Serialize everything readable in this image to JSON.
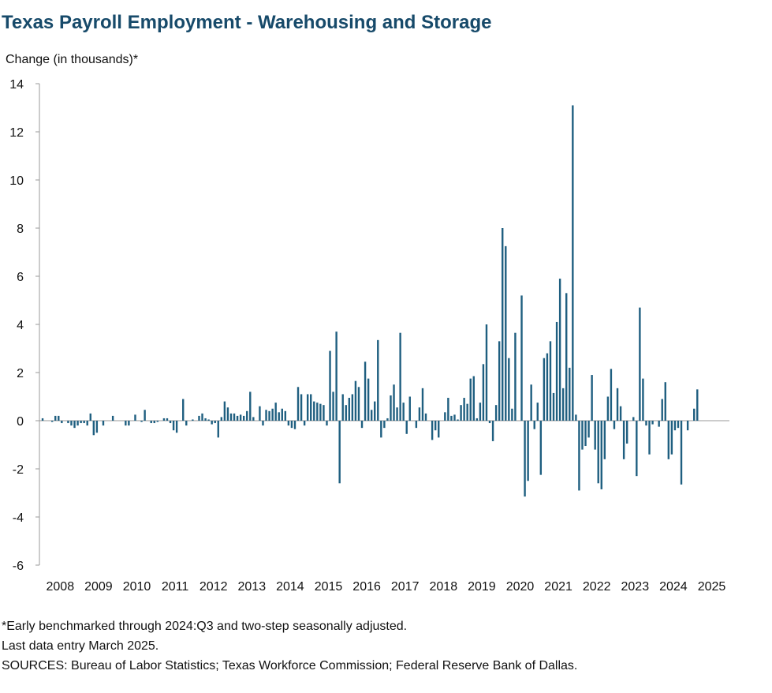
{
  "chart_data": {
    "type": "bar",
    "title": "Texas Payroll Employment - Warehousing and Storage",
    "y_label": "Change (in thousands)*",
    "notes": [
      "*Early benchmarked through 2024:Q3 and two-step seasonally adjusted.",
      "Last data entry March 2025.",
      "SOURCES: Bureau of Labor Statistics; Texas Workforce Commission; Federal Reserve Bank of Dallas."
    ],
    "color": "#1f5f80",
    "ylim": [
      -6,
      14
    ],
    "yticks": [
      -6,
      -4,
      -2,
      0,
      2,
      4,
      6,
      8,
      10,
      12,
      14
    ],
    "categories": [
      "2008",
      null,
      null,
      null,
      null,
      null,
      null,
      null,
      null,
      null,
      null,
      null,
      "2009",
      null,
      null,
      null,
      null,
      null,
      null,
      null,
      null,
      null,
      null,
      null,
      "2010",
      null,
      null,
      null,
      null,
      null,
      null,
      null,
      null,
      null,
      null,
      null,
      "2011",
      null,
      null,
      null,
      null,
      null,
      null,
      null,
      null,
      null,
      null,
      null,
      "2012",
      null,
      null,
      null,
      null,
      null,
      null,
      null,
      null,
      null,
      null,
      null,
      "2013",
      null,
      null,
      null,
      null,
      null,
      null,
      null,
      null,
      null,
      null,
      null,
      "2014",
      null,
      null,
      null,
      null,
      null,
      null,
      null,
      null,
      null,
      null,
      null,
      "2015",
      null,
      null,
      null,
      null,
      null,
      null,
      null,
      null,
      null,
      null,
      null,
      "2016",
      null,
      null,
      null,
      null,
      null,
      null,
      null,
      null,
      null,
      null,
      null,
      "2017",
      null,
      null,
      null,
      null,
      null,
      null,
      null,
      null,
      null,
      null,
      null,
      "2018",
      null,
      null,
      null,
      null,
      null,
      null,
      null,
      null,
      null,
      null,
      null,
      "2019",
      null,
      null,
      null,
      null,
      null,
      null,
      null,
      null,
      null,
      null,
      null,
      "2020",
      null,
      null,
      null,
      null,
      null,
      null,
      null,
      null,
      null,
      null,
      null,
      "2021",
      null,
      null,
      null,
      null,
      null,
      null,
      null,
      null,
      null,
      null,
      null,
      "2022",
      null,
      null,
      null,
      null,
      null,
      null,
      null,
      null,
      null,
      null,
      null,
      "2023",
      null,
      null,
      null,
      null,
      null,
      null,
      null,
      null,
      null,
      null,
      null,
      "2024",
      null,
      null,
      null,
      null,
      null,
      null,
      null,
      null,
      null,
      null,
      null,
      "2025",
      null,
      null
    ],
    "values": [
      0.1,
      0,
      0,
      -0.05,
      0.2,
      0.2,
      -0.1,
      0,
      -0.1,
      -0.2,
      -0.3,
      -0.2,
      -0.1,
      -0.1,
      -0.2,
      0.3,
      -0.6,
      -0.5,
      0,
      -0.2,
      0,
      0,
      0.2,
      0,
      0,
      0,
      -0.2,
      -0.2,
      0,
      0.25,
      0,
      -0.05,
      0.45,
      0,
      -0.1,
      -0.1,
      -0.05,
      0,
      0.1,
      0.1,
      -0.1,
      -0.4,
      -0.5,
      0,
      0.9,
      -0.2,
      0,
      0.05,
      0,
      0.2,
      0.3,
      0.1,
      0.05,
      -0.15,
      -0.1,
      -0.7,
      0.15,
      0.8,
      0.55,
      0.3,
      0.3,
      0.2,
      0.25,
      0.2,
      0.4,
      1.2,
      0.15,
      0,
      0.6,
      -0.2,
      0.45,
      0.4,
      0.5,
      0.75,
      0.35,
      0.5,
      0.4,
      -0.2,
      -0.3,
      -0.35,
      1.4,
      1.1,
      -0.2,
      1.1,
      1.1,
      0.8,
      0.75,
      0.7,
      0.65,
      -0.2,
      2.9,
      1.2,
      3.7,
      -2.6,
      1.1,
      0.65,
      0.95,
      1.1,
      1.65,
      1.4,
      -0.3,
      2.45,
      1.75,
      0.45,
      0.8,
      3.35,
      -0.7,
      -0.3,
      0.1,
      1.05,
      1.5,
      0.55,
      3.65,
      0.75,
      -0.55,
      1.0,
      0,
      -0.3,
      0.55,
      1.35,
      0.3,
      0,
      -0.8,
      -0.4,
      -0.7,
      0,
      0.35,
      0.95,
      0.2,
      0.25,
      0.05,
      0.65,
      0.95,
      0.7,
      1.75,
      1.85,
      0.1,
      0.75,
      2.35,
      4.0,
      -0.1,
      -0.85,
      0.65,
      3.3,
      8.0,
      7.25,
      2.6,
      0.5,
      3.65,
      0,
      5.2,
      -3.15,
      -2.5,
      1.5,
      -0.35,
      0.75,
      -2.25,
      2.6,
      2.8,
      3.3,
      1.15,
      4.1,
      5.9,
      1.35,
      5.3,
      2.2,
      13.1,
      0.25,
      -2.9,
      -1.2,
      -1.05,
      -0.7,
      1.9,
      -1.2,
      -2.6,
      -2.85,
      -1.6,
      1.0,
      2.15,
      -0.35,
      1.35,
      0.6,
      -1.6,
      -0.95,
      0,
      0.15,
      -2.3,
      4.7,
      1.75,
      -0.2,
      -1.4,
      -0.15,
      0,
      -0.25,
      0.9,
      1.6,
      -1.6,
      -1.4,
      -0.4,
      -0.3,
      -2.65,
      0,
      -0.4,
      0,
      0.5,
      1.3,
      0
    ]
  }
}
